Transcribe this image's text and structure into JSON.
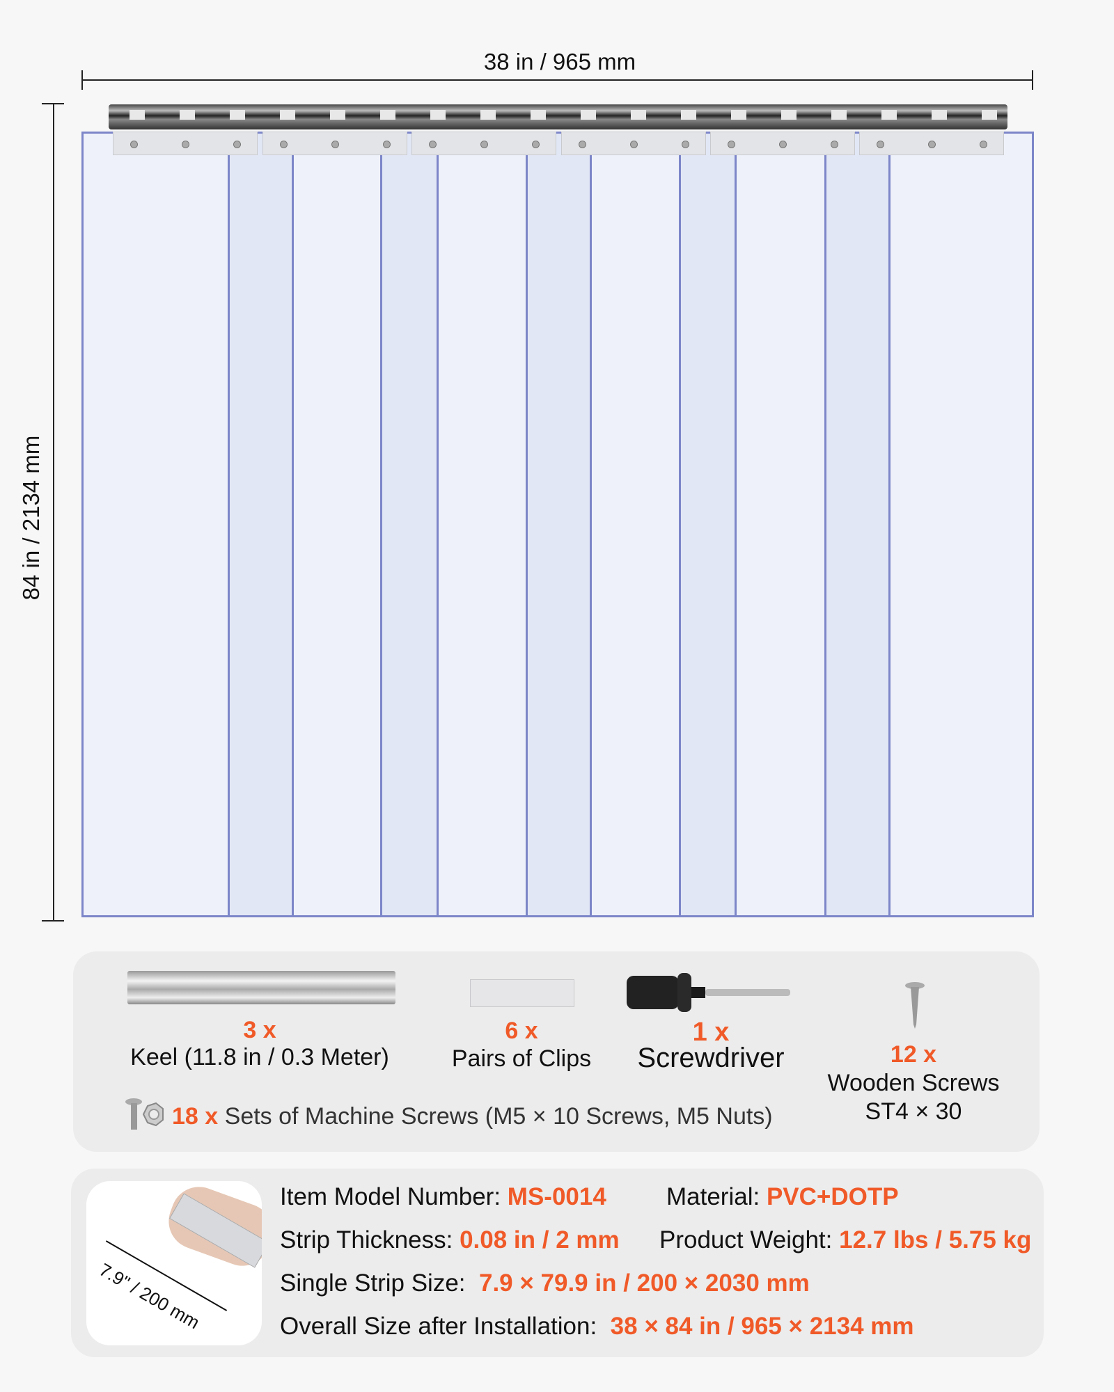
{
  "dimensions": {
    "width_label": "38 in / 965 mm",
    "height_label": "84 in / 2134 mm"
  },
  "accessories": {
    "items": [
      {
        "qty": "3 x",
        "label": "Keel (11.8 in / 0.3 Meter)",
        "icon": "keel-rail-icon"
      },
      {
        "qty": "6 x",
        "label": "Pairs of Clips",
        "icon": "clip-plate-icon"
      },
      {
        "qty": "1 x",
        "label": "Screwdriver",
        "icon": "screwdriver-icon"
      },
      {
        "qty": "12 x",
        "label_line1": "Wooden Screws",
        "label_line2": "ST4 × 30",
        "icon": "wood-screw-icon"
      }
    ],
    "machine_screws": {
      "qty": "18 x",
      "label": "Sets of Machine Screws (M5 × 10 Screws, M5 Nuts)",
      "icon": "machine-screw-nut-icon"
    }
  },
  "specs": {
    "image_caption": "7.9\" / 200 mm",
    "model": {
      "label": "Item Model Number:",
      "value": "MS-0014"
    },
    "material": {
      "label": "Material:",
      "value": "PVC+DOTP"
    },
    "thickness": {
      "label": "Strip Thickness:",
      "value": "0.08 in / 2 mm"
    },
    "weight": {
      "label": "Product Weight:",
      "value": "12.7 lbs / 5.75 kg"
    },
    "strip_size": {
      "label": "Single Strip Size:",
      "value": "7.9 × 79.9 in / 200 × 2030 mm"
    },
    "overall_size": {
      "label": "Overall Size after Installation:",
      "value": "38 × 84 in / 965 × 2134 mm"
    }
  },
  "colors": {
    "accent": "#f05a28",
    "strip_edge": "#7c86c8",
    "panel": "#ececec",
    "background": "#f7f7f7"
  }
}
